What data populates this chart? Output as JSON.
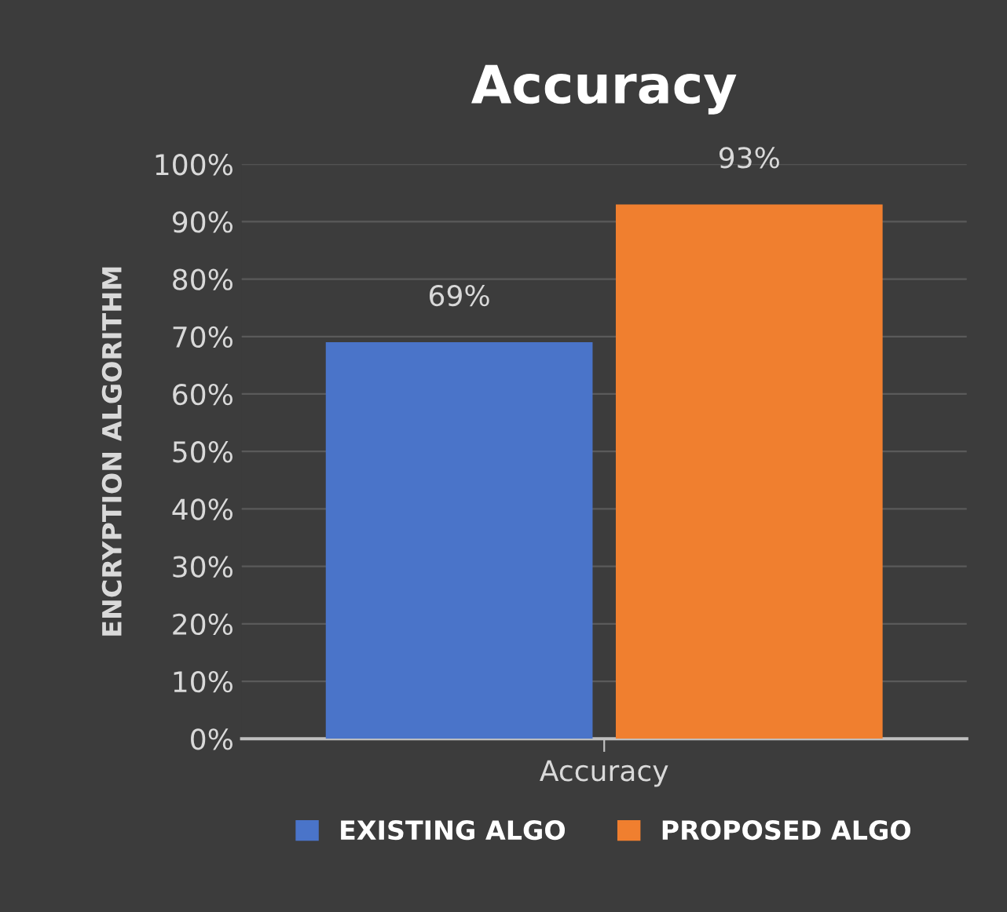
{
  "chart_data": {
    "type": "bar",
    "title": "Accuracy",
    "ylabel": "ENCRYPTION ALGORITHM",
    "categories": [
      "Accuracy"
    ],
    "series": [
      {
        "name": "EXISTING ALGO",
        "color": "#4a74c9",
        "values": [
          69
        ],
        "value_labels": [
          "69%"
        ]
      },
      {
        "name": "PROPOSED ALGO",
        "color": "#f07f2f",
        "values": [
          93
        ],
        "value_labels": [
          "93%"
        ]
      }
    ],
    "ylim": [
      0,
      100
    ],
    "yticks": [
      {
        "value": 0,
        "label": "0%"
      },
      {
        "value": 10,
        "label": "10%"
      },
      {
        "value": 20,
        "label": "20%"
      },
      {
        "value": 30,
        "label": "30%"
      },
      {
        "value": 40,
        "label": "40%"
      },
      {
        "value": 50,
        "label": "50%"
      },
      {
        "value": 60,
        "label": "60%"
      },
      {
        "value": 70,
        "label": "70%"
      },
      {
        "value": 80,
        "label": "80%"
      },
      {
        "value": 90,
        "label": "90%"
      },
      {
        "value": 100,
        "label": "100%"
      }
    ],
    "grid": "y",
    "legend": "bottom"
  }
}
